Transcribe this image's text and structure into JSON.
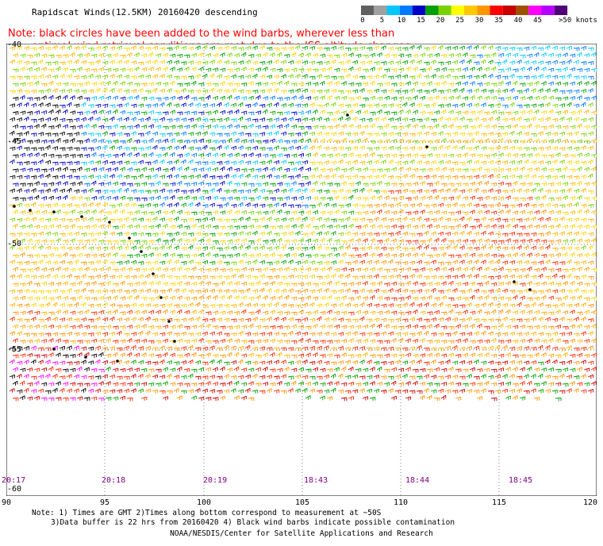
{
  "title": "Rapidscat Winds(12.5KM) 20160420 descending",
  "note": {
    "line1": "Note: black circles have been added to the wind barbs, wherever less than",
    "line2": "optimal wind retrieval conditions are met due to the ISS altitude changes."
  },
  "colorbar": {
    "labels": [
      "0",
      "5",
      "10",
      "15",
      "20",
      "25",
      "30",
      "35",
      "40",
      "45",
      ">50 knots"
    ],
    "colors": [
      "#606060",
      "#a0a0a0",
      "#00c8ff",
      "#0078ff",
      "#0000c8",
      "#00a000",
      "#78d200",
      "#ffff00",
      "#ffc800",
      "#ff9600",
      "#ff0000",
      "#c80000",
      "#a05000",
      "#ff00ff",
      "#b400ff",
      "#500078"
    ]
  },
  "map": {
    "lat_labels": [
      "-40",
      "-45",
      "-50",
      "-55",
      "-60"
    ],
    "lon_labels": [
      "90",
      "95",
      "100",
      "105",
      "110",
      "115",
      "120"
    ],
    "time_labels": [
      "20:17",
      "20:18",
      "20:19",
      "18:43",
      "18:44",
      "18:45"
    ]
  },
  "footer": {
    "line1": "Note: 1) Times are GMT 2)Times along bottom correspond to measurement at ~50S",
    "line2": "3)Data buffer is 22 hrs from 20160420 4) Black wind barbs indicate possible contamination",
    "credit": "NOAA/NESDIS/Center for Satellite Applications and Research"
  }
}
